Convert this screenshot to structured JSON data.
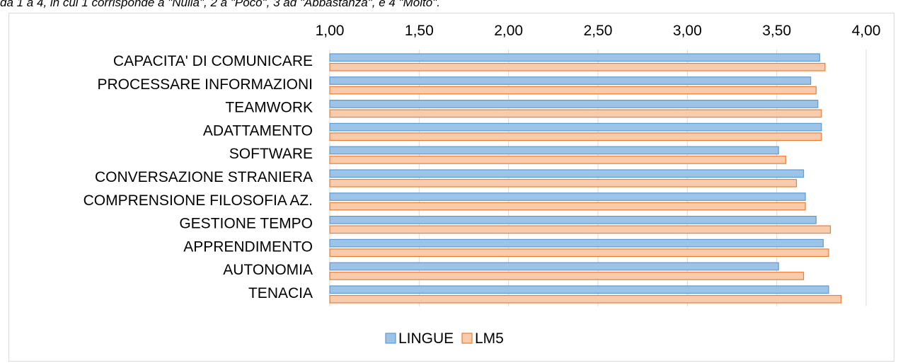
{
  "caption": "da 1 a 4, in cui 1 corrisponde a \"Nulla\", 2 a \"Poco\", 3 ad \"Abbastanza\", e 4 \"Molto\".",
  "chart_data": {
    "type": "bar",
    "orientation": "horizontal",
    "title": "",
    "xlabel": "",
    "ylabel": "",
    "xlim": [
      1.0,
      4.0
    ],
    "ticks": [
      "1,00",
      "1,50",
      "2,00",
      "2,50",
      "3,00",
      "3,50",
      "4,00"
    ],
    "tick_values": [
      1.0,
      1.5,
      2.0,
      2.5,
      3.0,
      3.5,
      4.0
    ],
    "axis_position": "top",
    "grid": true,
    "legend_position": "bottom",
    "categories": [
      "CAPACITA' DI COMUNICARE",
      "PROCESSARE INFORMAZIONI",
      "TEAMWORK",
      "ADATTAMENTO",
      "SOFTWARE",
      "CONVERSAZIONE STRANIERA",
      "COMPRENSIONE FILOSOFIA AZ.",
      "GESTIONE TEMPO",
      "APPRENDIMENTO",
      "AUTONOMIA",
      "TENACIA "
    ],
    "series": [
      {
        "name": "LINGUE",
        "color": "#9dc3e6",
        "stroke": "#5b9bd5",
        "values": [
          3.74,
          3.69,
          3.73,
          3.75,
          3.51,
          3.65,
          3.66,
          3.72,
          3.76,
          3.51,
          3.79
        ]
      },
      {
        "name": "LM5",
        "color": "#f8cbad",
        "stroke": "#ed7d31",
        "values": [
          3.77,
          3.72,
          3.75,
          3.75,
          3.55,
          3.61,
          3.66,
          3.8,
          3.79,
          3.65,
          3.86
        ]
      }
    ]
  }
}
